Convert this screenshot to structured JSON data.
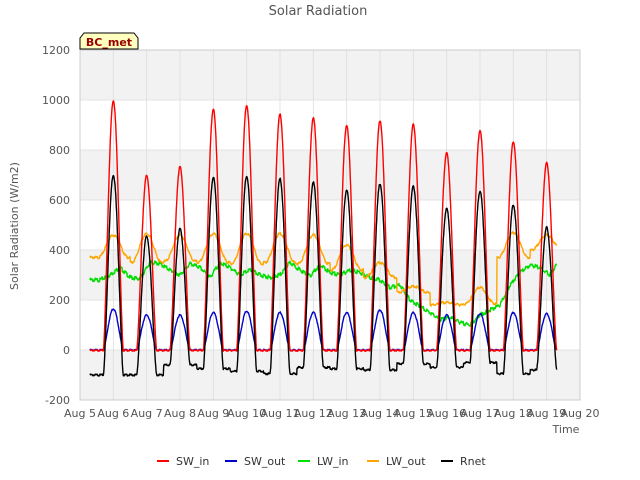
{
  "chart_data": {
    "type": "line",
    "title": "Solar Radiation",
    "xlabel": "Time",
    "ylabel": "Solar Radiation (W/m2)",
    "annotation": "BC_met",
    "xlim": [
      5,
      20
    ],
    "ylim": [
      -200,
      1200
    ],
    "x_ticks": [
      5,
      6,
      7,
      8,
      9,
      10,
      11,
      12,
      13,
      14,
      15,
      16,
      17,
      18,
      19,
      20
    ],
    "x_tick_labels": [
      "Aug 5",
      "Aug 6",
      "Aug 7",
      "Aug 8",
      "Aug 9",
      "Aug 10",
      "Aug 11",
      "Aug 12",
      "Aug 13",
      "Aug 14",
      "Aug 15",
      "Aug 16",
      "Aug 17",
      "Aug 18",
      "Aug 19",
      "Aug 20"
    ],
    "y_ticks": [
      -200,
      0,
      200,
      400,
      600,
      800,
      1000,
      1200
    ],
    "y_tick_labels": [
      "-200",
      "0",
      "200",
      "400",
      "600",
      "800",
      "1000",
      "1200"
    ],
    "grid": true,
    "band_fill": "#f2f2f2",
    "legend_position": "bottom-center",
    "x_start": 5.3,
    "x_end": 19.3,
    "series": [
      {
        "name": "SW_in",
        "color": "#ff0000",
        "daily_peak_x": [
          6.0,
          7.0,
          8.0,
          9.0,
          10.0,
          11.0,
          12.0,
          13.0,
          14.0,
          15.0,
          16.0,
          17.0,
          18.0,
          19.0
        ],
        "daily_peak_values": [
          1000,
          700,
          735,
          965,
          980,
          945,
          930,
          900,
          920,
          905,
          790,
          880,
          835,
          750
        ]
      },
      {
        "name": "SW_out",
        "color": "#0000cc",
        "daily_peak_x": [
          6.0,
          7.0,
          8.0,
          9.0,
          10.0,
          11.0,
          12.0,
          13.0,
          14.0,
          15.0,
          16.0,
          17.0,
          18.0,
          19.0
        ],
        "daily_peak_values": [
          165,
          140,
          140,
          150,
          155,
          150,
          150,
          150,
          160,
          150,
          140,
          145,
          150,
          145
        ]
      },
      {
        "name": "LW_in",
        "color": "#00dd00",
        "x": [
          5.3,
          5.6,
          5.9,
          6.2,
          6.5,
          6.8,
          7.1,
          7.4,
          7.7,
          8.0,
          8.3,
          8.6,
          8.9,
          9.2,
          9.5,
          9.8,
          10.1,
          10.4,
          10.7,
          11.0,
          11.3,
          11.6,
          11.9,
          12.2,
          12.5,
          12.8,
          13.1,
          13.4,
          13.7,
          14.0,
          14.3,
          14.6,
          14.9,
          15.2,
          15.5,
          15.8,
          16.1,
          16.4,
          16.7,
          17.0,
          17.3,
          17.6,
          17.9,
          18.2,
          18.5,
          18.8,
          19.1,
          19.3
        ],
        "values": [
          280,
          280,
          300,
          330,
          290,
          285,
          350,
          345,
          320,
          300,
          345,
          330,
          290,
          350,
          330,
          300,
          320,
          300,
          290,
          300,
          350,
          320,
          295,
          340,
          310,
          300,
          320,
          310,
          290,
          280,
          250,
          260,
          200,
          175,
          150,
          120,
          130,
          110,
          100,
          140,
          160,
          180,
          260,
          310,
          340,
          330,
          300,
          340
        ]
      },
      {
        "name": "LW_out",
        "color": "#ffa500",
        "daily_peak_x": [
          6.0,
          7.0,
          8.0,
          9.0,
          10.0,
          11.0,
          12.0,
          13.0,
          14.0,
          15.0,
          16.0,
          17.0,
          18.0,
          19.0
        ],
        "daily_peak_values": [
          460,
          465,
          460,
          465,
          465,
          465,
          460,
          420,
          350,
          255,
          190,
          250,
          470,
          460
        ],
        "daily_min_values": [
          370,
          350,
          355,
          350,
          345,
          350,
          345,
          320,
          290,
          230,
          180,
          185,
          370,
          400
        ]
      },
      {
        "name": "Rnet",
        "color": "#000000",
        "daily_peak_x": [
          6.0,
          7.0,
          8.0,
          9.0,
          10.0,
          11.0,
          12.0,
          13.0,
          14.0,
          15.0,
          16.0,
          17.0,
          18.0,
          19.0
        ],
        "daily_peak_values": [
          700,
          455,
          485,
          690,
          695,
          685,
          670,
          640,
          665,
          655,
          565,
          635,
          580,
          490
        ],
        "night_values": [
          -100,
          -100,
          -60,
          -75,
          -85,
          -95,
          -70,
          -75,
          -80,
          -55,
          -70,
          -50,
          -95,
          -80
        ]
      }
    ]
  }
}
